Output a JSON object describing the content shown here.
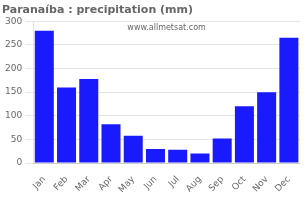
{
  "chart_data": {
    "type": "bar",
    "title": "Paranaíba : precipitation (mm)",
    "categories": [
      "Jan",
      "Feb",
      "Mar",
      "Apr",
      "May",
      "Jun",
      "Jul",
      "Aug",
      "Sep",
      "Oct",
      "Nov",
      "Dec"
    ],
    "values": [
      280,
      160,
      178,
      82,
      58,
      30,
      28,
      20,
      52,
      120,
      150,
      265
    ],
    "color": "#1a1aff",
    "ylim": [
      0,
      300
    ],
    "yticks": [
      0,
      50,
      100,
      150,
      200,
      250,
      300
    ],
    "grid": true,
    "annotations": [
      "www.allmetsat.com"
    ]
  }
}
